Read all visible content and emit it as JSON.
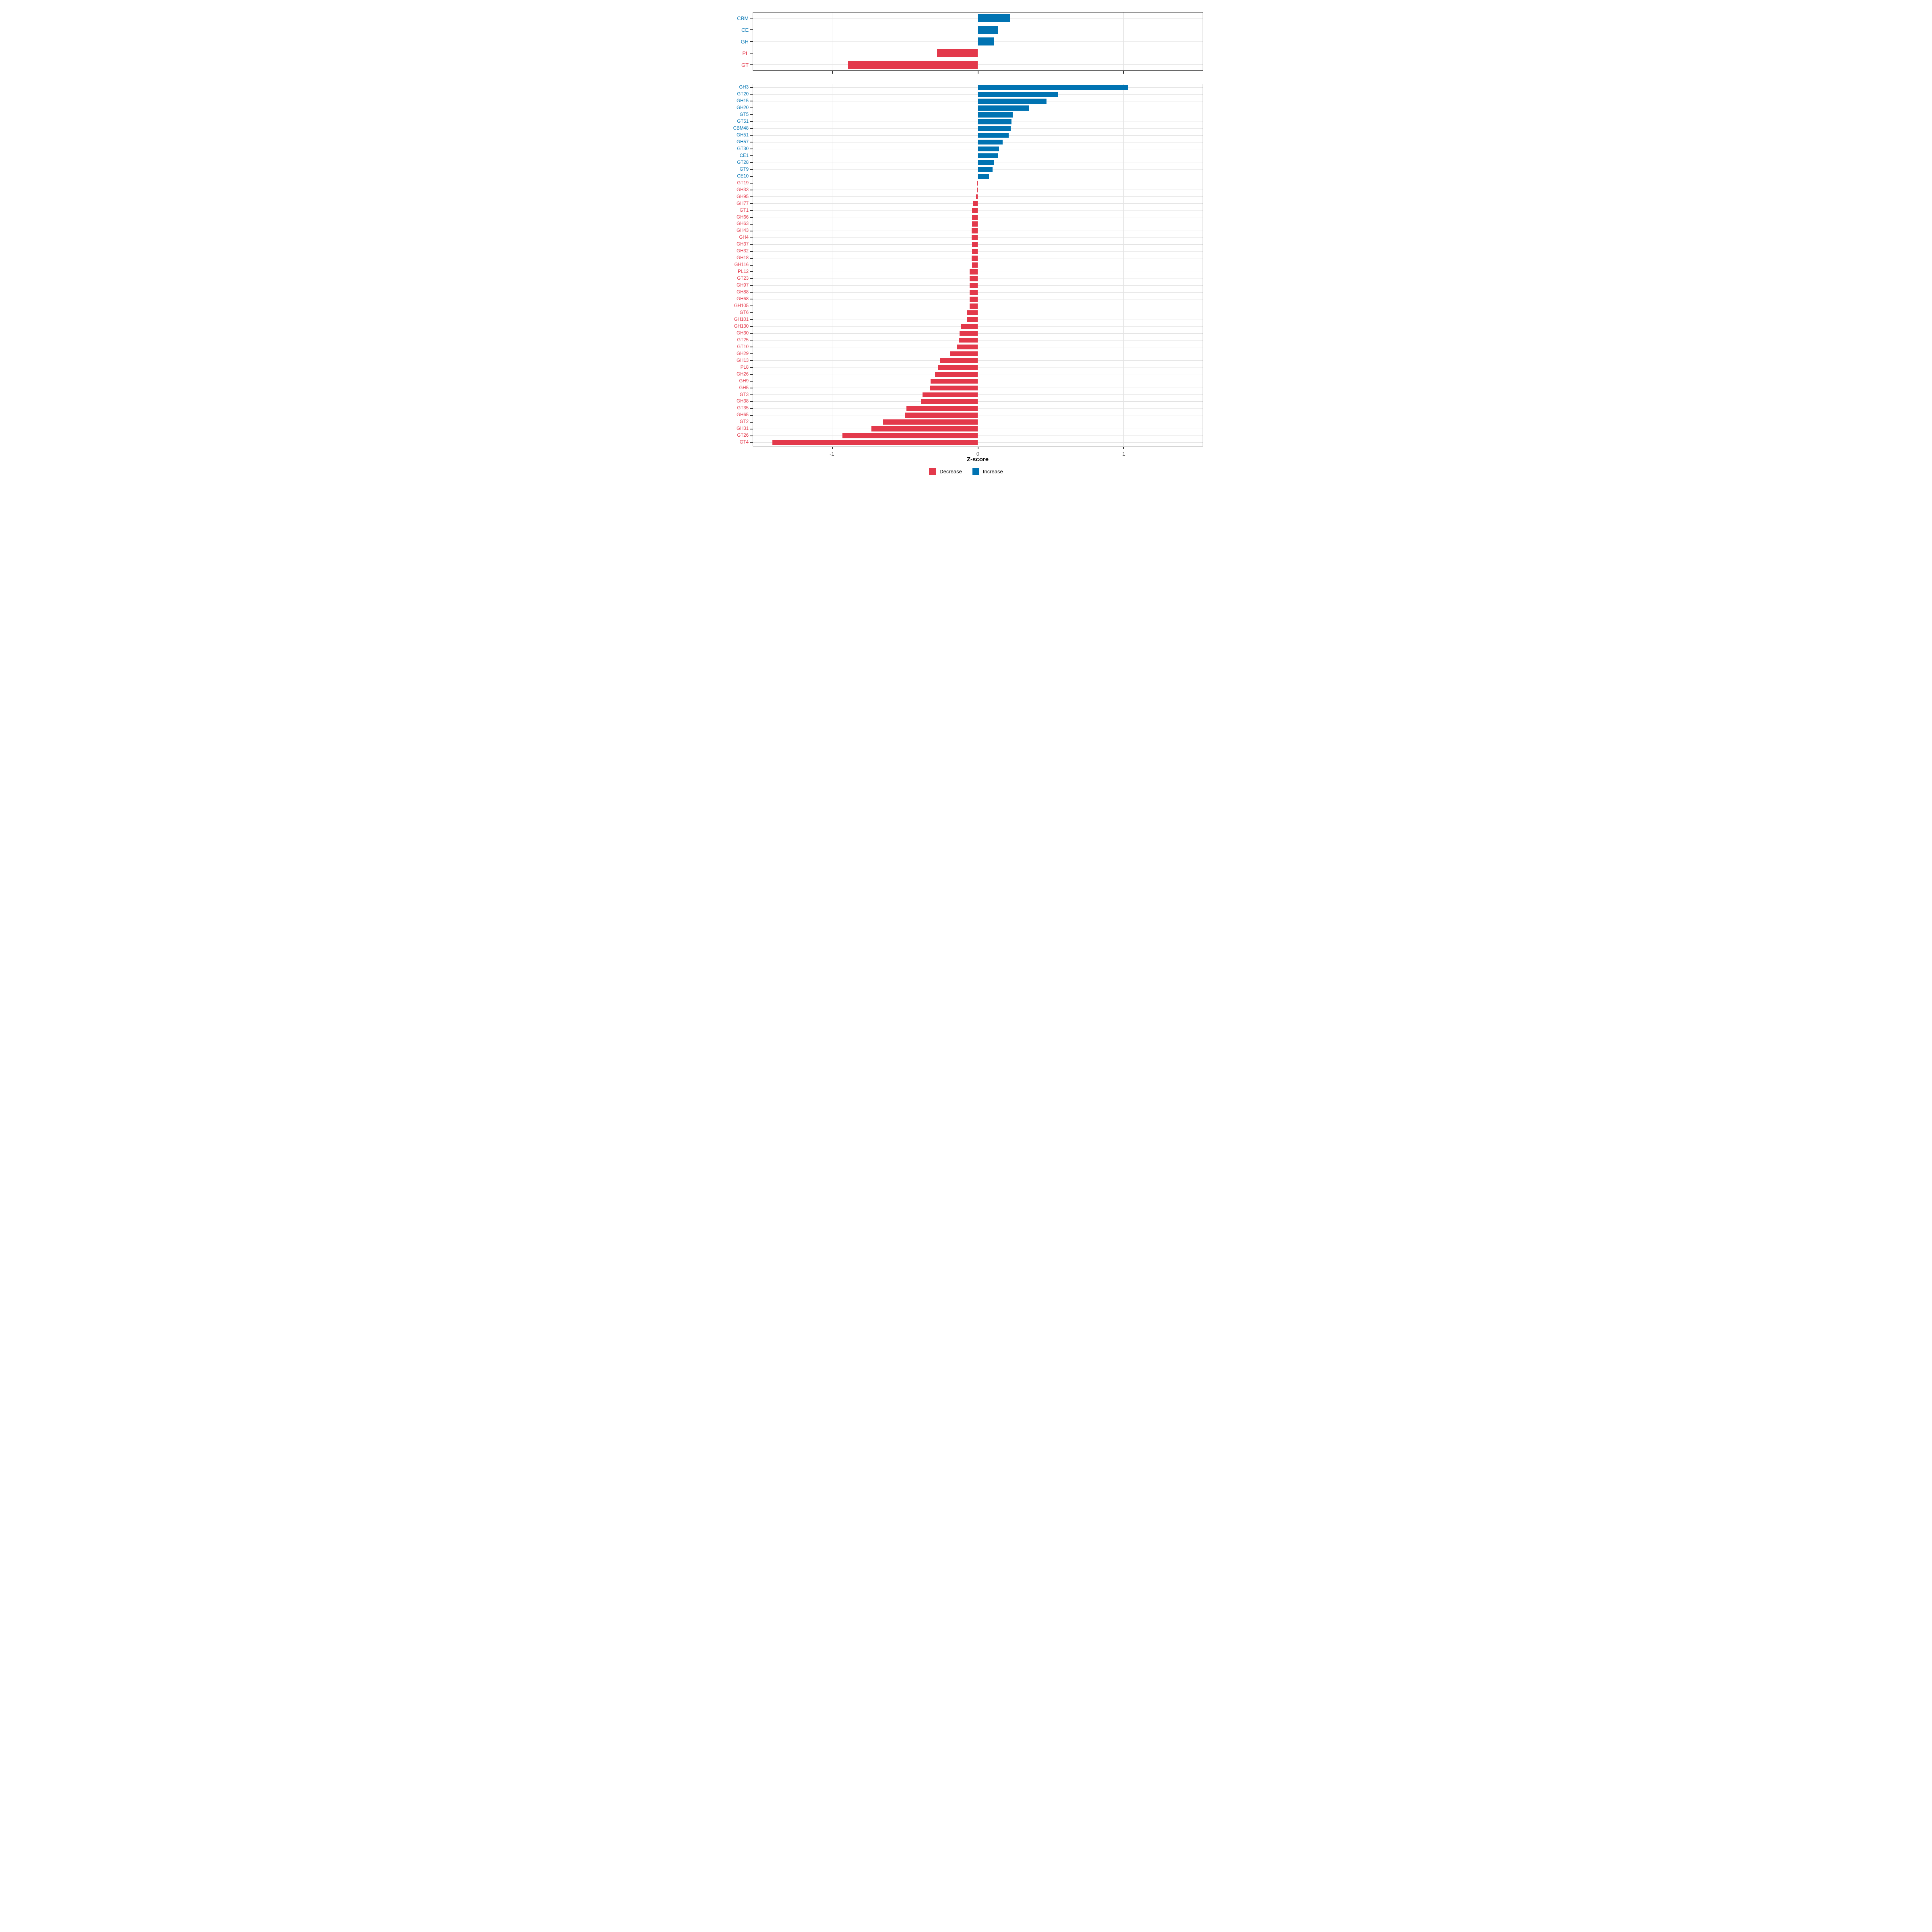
{
  "chart_data": [
    {
      "type": "bar",
      "orientation": "horizontal",
      "panel": "cazyme-classes",
      "categories": [
        "CBM",
        "CE",
        "GH",
        "PL",
        "GT"
      ],
      "values": [
        0.22,
        0.14,
        0.11,
        -0.28,
        -0.89
      ],
      "title": "",
      "xlabel": "Z-score",
      "ylabel": "",
      "xlim": [
        -1.543,
        1.543
      ],
      "grid": true,
      "legend_position": "bottom"
    },
    {
      "type": "bar",
      "orientation": "horizontal",
      "panel": "cazyme-families",
      "categories": [
        "GH3",
        "GT20",
        "GH15",
        "GH20",
        "GT5",
        "GT51",
        "CBM48",
        "GH51",
        "GH57",
        "GT30",
        "CE1",
        "GT28",
        "GT9",
        "CE10",
        "GT19",
        "GH33",
        "GH95",
        "GH77",
        "GT1",
        "GH66",
        "GH63",
        "GH43",
        "GH4",
        "GH37",
        "GH32",
        "GH18",
        "GH116",
        "PL12",
        "GT23",
        "GH97",
        "GH88",
        "GH68",
        "GH105",
        "GT6",
        "GH101",
        "GH130",
        "GH30",
        "GT25",
        "GT10",
        "GH29",
        "GH13",
        "PL8",
        "GH26",
        "GH9",
        "GH5",
        "GT3",
        "GH38",
        "GT35",
        "GH65",
        "GT2",
        "GH31",
        "GT26",
        "GT4"
      ],
      "values": [
        1.03,
        0.55,
        0.47,
        0.35,
        0.24,
        0.23,
        0.225,
        0.21,
        0.17,
        0.145,
        0.14,
        0.11,
        0.1,
        0.075,
        -0.003,
        -0.006,
        -0.012,
        -0.032,
        -0.041,
        -0.041,
        -0.041,
        -0.042,
        -0.042,
        -0.041,
        -0.041,
        -0.042,
        -0.041,
        -0.058,
        -0.058,
        -0.058,
        -0.058,
        -0.058,
        -0.058,
        -0.072,
        -0.072,
        -0.118,
        -0.127,
        -0.132,
        -0.144,
        -0.19,
        -0.26,
        -0.274,
        -0.294,
        -0.325,
        -0.33,
        -0.38,
        -0.39,
        -0.49,
        -0.5,
        -0.65,
        -0.73,
        -0.93,
        -1.41
      ],
      "title": "",
      "xlabel": "Z-score",
      "ylabel": "",
      "xlim": [
        -1.543,
        1.543
      ],
      "grid": true,
      "legend_position": "bottom"
    }
  ],
  "axis": {
    "xlabel": "Z-score",
    "ticks": [
      {
        "value": -1,
        "label": "-1"
      },
      {
        "value": 0,
        "label": "0"
      },
      {
        "value": 1,
        "label": "1"
      }
    ]
  },
  "legend": {
    "items": [
      {
        "label": "Decrease",
        "color": "#E3394B"
      },
      {
        "label": "Increase",
        "color": "#0073B2"
      }
    ]
  },
  "colors": {
    "increase": "#0073B2",
    "decrease": "#E3394B",
    "grid": "#E3E3E3",
    "axis_text": "#4D4D4D",
    "border": "#1A1A1A",
    "background": "#FFFFFF"
  }
}
